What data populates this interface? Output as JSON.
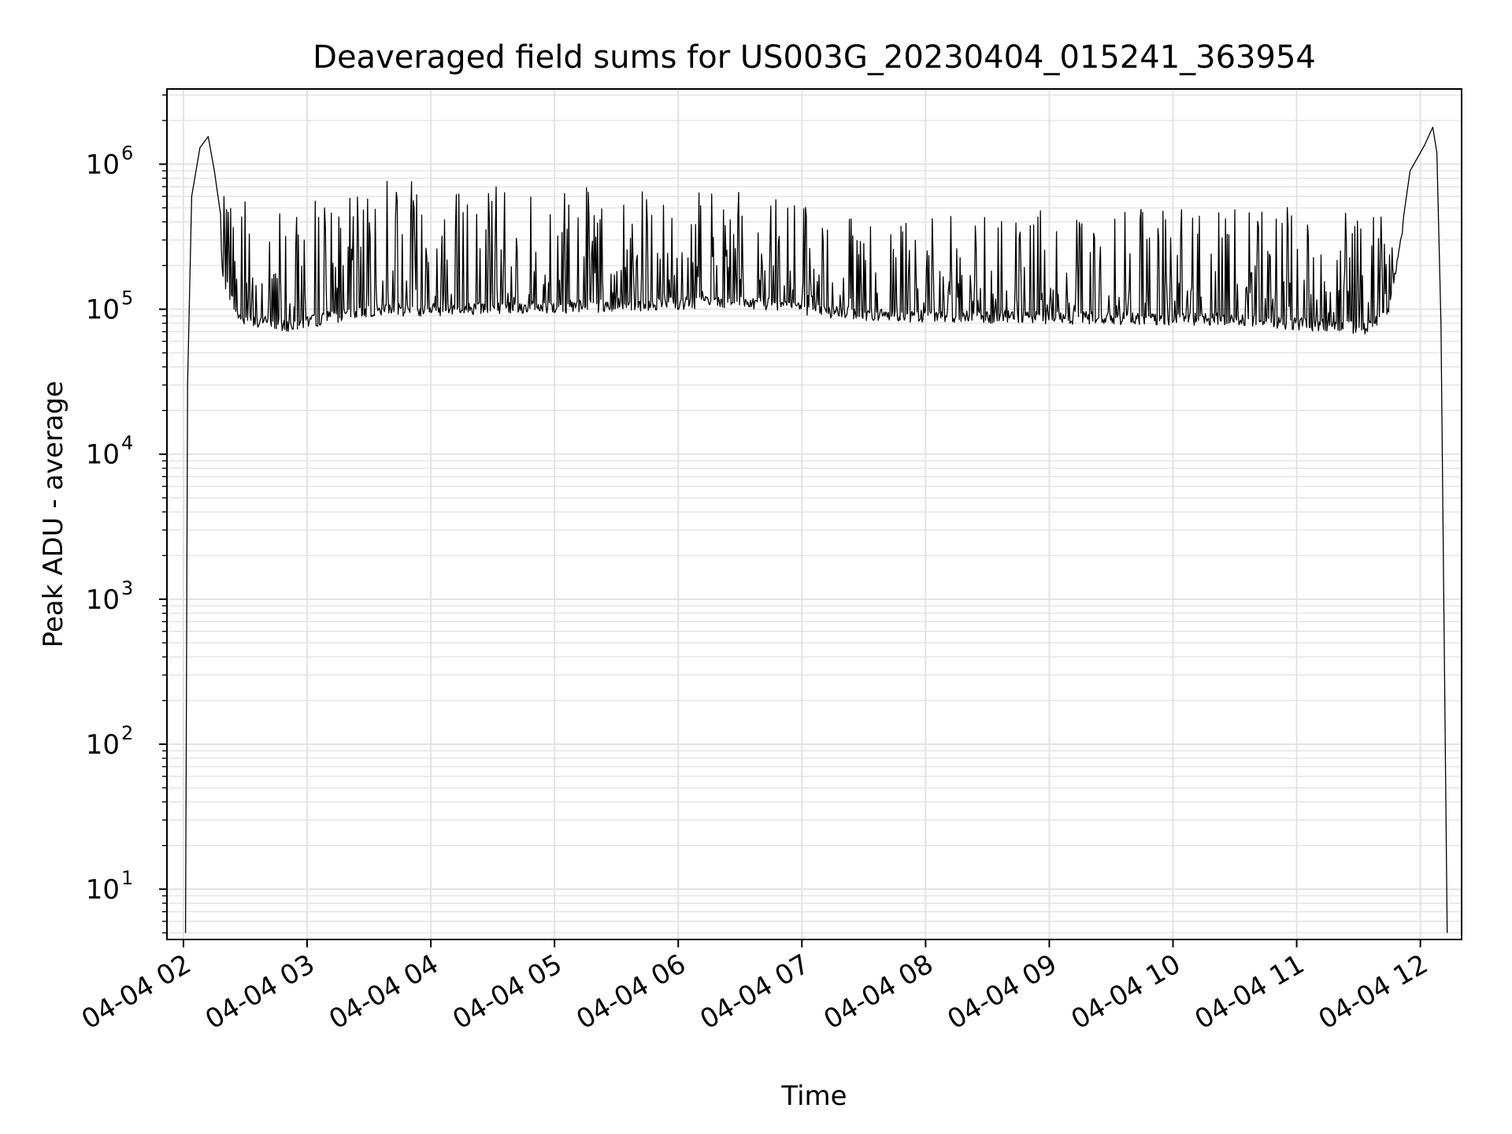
{
  "chart_data": {
    "type": "line",
    "title": "Deaveraged field sums for US003G_20230404_015241_363954",
    "xlabel": "Time",
    "ylabel": "Peak ADU - average",
    "yscale": "log",
    "ylim": [
      4.5,
      3300000
    ],
    "xlim": [
      "2023-04-04 01:52",
      "2023-04-04 12:20"
    ],
    "grid": true,
    "line_color": "#000000",
    "grid_color": "#e3e3e3",
    "x_ticks": [
      {
        "t": "2023-04-04 02:00",
        "label": "04-04 02"
      },
      {
        "t": "2023-04-04 03:00",
        "label": "04-04 03"
      },
      {
        "t": "2023-04-04 04:00",
        "label": "04-04 04"
      },
      {
        "t": "2023-04-04 05:00",
        "label": "04-04 05"
      },
      {
        "t": "2023-04-04 06:00",
        "label": "04-04 06"
      },
      {
        "t": "2023-04-04 07:00",
        "label": "04-04 07"
      },
      {
        "t": "2023-04-04 08:00",
        "label": "04-04 08"
      },
      {
        "t": "2023-04-04 09:00",
        "label": "04-04 09"
      },
      {
        "t": "2023-04-04 10:00",
        "label": "04-04 10"
      },
      {
        "t": "2023-04-04 11:00",
        "label": "04-04 11"
      },
      {
        "t": "2023-04-04 12:00",
        "label": "04-04 12"
      }
    ],
    "y_ticks": [
      {
        "value": 10,
        "base": "10",
        "exp": "1"
      },
      {
        "value": 100,
        "base": "10",
        "exp": "2"
      },
      {
        "value": 1000,
        "base": "10",
        "exp": "3"
      },
      {
        "value": 10000,
        "base": "10",
        "exp": "4"
      },
      {
        "value": 100000,
        "base": "10",
        "exp": "5"
      },
      {
        "value": 1000000,
        "base": "10",
        "exp": "6"
      }
    ],
    "series": [
      {
        "baseline_envelope": [
          {
            "t": "2023-04-04 02:18",
            "y": 180000
          },
          {
            "t": "2023-04-04 02:27",
            "y": 85000
          },
          {
            "t": "2023-04-04 02:50",
            "y": 75000
          },
          {
            "t": "2023-04-04 03:30",
            "y": 95000
          },
          {
            "t": "2023-04-04 05:00",
            "y": 100000
          },
          {
            "t": "2023-04-04 06:30",
            "y": 110000
          },
          {
            "t": "2023-04-04 07:30",
            "y": 88000
          },
          {
            "t": "2023-04-04 09:00",
            "y": 85000
          },
          {
            "t": "2023-04-04 10:30",
            "y": 82000
          },
          {
            "t": "2023-04-04 11:35",
            "y": 72000
          },
          {
            "t": "2023-04-04 11:45",
            "y": 100000
          },
          {
            "t": "2023-04-04 11:52",
            "y": 400000
          }
        ],
        "spike_envelope": [
          {
            "t": "2023-04-04 02:20",
            "y": 600000
          },
          {
            "t": "2023-04-04 03:30",
            "y": 850000
          },
          {
            "t": "2023-04-04 05:00",
            "y": 700000
          },
          {
            "t": "2023-04-04 06:30",
            "y": 650000
          },
          {
            "t": "2023-04-04 07:30",
            "y": 450000
          },
          {
            "t": "2023-04-04 09:00",
            "y": 500000
          },
          {
            "t": "2023-04-04 10:30",
            "y": 550000
          },
          {
            "t": "2023-04-04 11:45",
            "y": 450000
          }
        ],
        "start_ramp": [
          {
            "t": "2023-04-04 02:01",
            "y": 5
          },
          {
            "t": "2023-04-04 02:02",
            "y": 30000
          },
          {
            "t": "2023-04-04 02:04",
            "y": 600000
          },
          {
            "t": "2023-04-04 02:08",
            "y": 1300000
          },
          {
            "t": "2023-04-04 02:12",
            "y": 1550000
          },
          {
            "t": "2023-04-04 02:15",
            "y": 900000
          },
          {
            "t": "2023-04-04 02:18",
            "y": 450000
          }
        ],
        "end_ramp": [
          {
            "t": "2023-04-04 11:52",
            "y": 450000
          },
          {
            "t": "2023-04-04 11:55",
            "y": 900000
          },
          {
            "t": "2023-04-04 12:02",
            "y": 1350000
          },
          {
            "t": "2023-04-04 12:06",
            "y": 1800000
          },
          {
            "t": "2023-04-04 12:08",
            "y": 1200000
          },
          {
            "t": "2023-04-04 12:10",
            "y": 80000
          },
          {
            "t": "2023-04-04 12:13",
            "y": 5
          }
        ]
      }
    ]
  }
}
